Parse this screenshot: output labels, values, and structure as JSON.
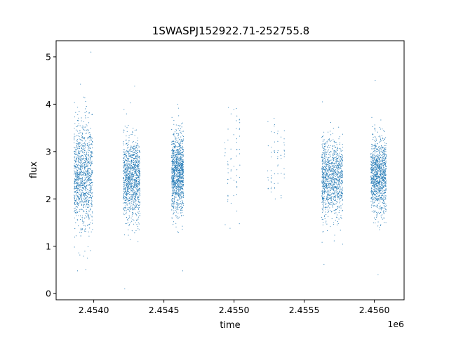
{
  "chart_data": {
    "type": "scatter",
    "title": "1SWASPJ152922.71-252755.8",
    "xlabel": "time",
    "ylabel": "flux",
    "x_offset_label": "1e6",
    "xlim": [
      2453732,
      2456212
    ],
    "ylim": [
      -0.13,
      5.34
    ],
    "xticks": [
      2454000,
      2454500,
      2455000,
      2455500,
      2456000
    ],
    "xtick_labels": [
      "2.4540",
      "2.4545",
      "2.4550",
      "2.4555",
      "2.4560"
    ],
    "yticks": [
      0,
      1,
      2,
      3,
      4,
      5
    ],
    "ytick_labels": [
      "0",
      "1",
      "2",
      "3",
      "4",
      "5"
    ],
    "grid": false,
    "marker_color": "#1f77b4",
    "seasons": [
      {
        "x_start": 2453860,
        "x_end": 2453992,
        "density": "dense",
        "flux_center": 2.5,
        "flux_spread": 0.55,
        "flux_min": 0.48,
        "flux_max": 5.1
      },
      {
        "x_start": 2454210,
        "x_end": 2454330,
        "density": "dense",
        "flux_center": 2.45,
        "flux_spread": 0.42,
        "flux_min": 0.1,
        "flux_max": 4.38
      },
      {
        "x_start": 2454555,
        "x_end": 2454640,
        "density": "dense",
        "flux_center": 2.55,
        "flux_spread": 0.42,
        "flux_min": 0.48,
        "flux_max": 4.0
      },
      {
        "x_start": 2454925,
        "x_end": 2455050,
        "density": "sparse",
        "flux_center": 2.85,
        "flux_spread": 0.55,
        "flux_min": 1.38,
        "flux_max": 3.93
      },
      {
        "x_start": 2455230,
        "x_end": 2455370,
        "density": "sparse",
        "flux_center": 2.75,
        "flux_spread": 0.5,
        "flux_min": 2.0,
        "flux_max": 3.7
      },
      {
        "x_start": 2455625,
        "x_end": 2455775,
        "density": "dense",
        "flux_center": 2.45,
        "flux_spread": 0.4,
        "flux_min": 0.62,
        "flux_max": 4.05
      },
      {
        "x_start": 2455975,
        "x_end": 2456085,
        "density": "dense",
        "flux_center": 2.5,
        "flux_spread": 0.4,
        "flux_min": 0.4,
        "flux_max": 4.5
      }
    ]
  }
}
